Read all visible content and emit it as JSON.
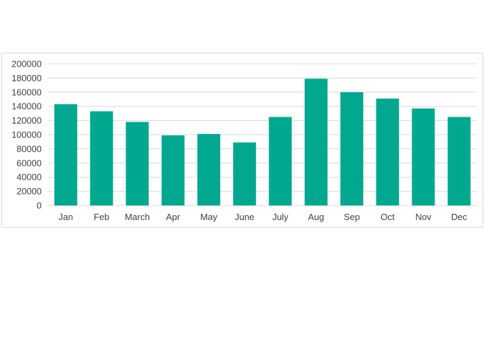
{
  "chart_data": {
    "type": "bar",
    "categories": [
      "Jan",
      "Feb",
      "March",
      "Apr",
      "May",
      "June",
      "July",
      "Aug",
      "Sep",
      "Oct",
      "Nov",
      "Dec"
    ],
    "values": [
      143000,
      133000,
      118000,
      99000,
      101000,
      89000,
      125000,
      179000,
      160000,
      151000,
      137000,
      125000
    ],
    "title": "",
    "xlabel": "",
    "ylabel": "",
    "ylim": [
      0,
      200000
    ],
    "yticks": [
      "0",
      "20000",
      "40000",
      "60000",
      "80000",
      "100000",
      "120000",
      "140000",
      "160000",
      "180000",
      "200000"
    ],
    "grid": true,
    "legend": "none",
    "bar_color": "#00a88f"
  }
}
